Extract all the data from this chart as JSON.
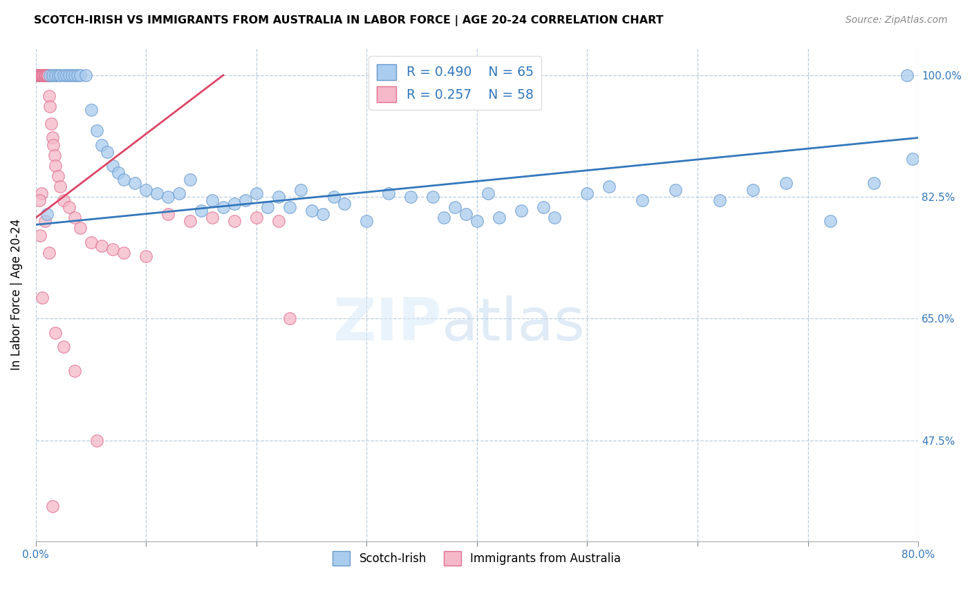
{
  "title": "SCOTCH-IRISH VS IMMIGRANTS FROM AUSTRALIA IN LABOR FORCE | AGE 20-24 CORRELATION CHART",
  "source": "Source: ZipAtlas.com",
  "ylabel": "In Labor Force | Age 20-24",
  "xlim": [
    0.0,
    80.0
  ],
  "ylim": [
    33.0,
    104.0
  ],
  "xtick_positions": [
    0.0,
    10.0,
    20.0,
    30.0,
    40.0,
    50.0,
    60.0,
    70.0,
    80.0
  ],
  "xticklabels": [
    "0.0%",
    "",
    "",
    "",
    "",
    "",
    "",
    "",
    "80.0%"
  ],
  "ytick_values": [
    47.5,
    65.0,
    82.5,
    100.0
  ],
  "ytick_labels": [
    "47.5%",
    "65.0%",
    "82.5%",
    "100.0%"
  ],
  "legend_blue_label": "Scotch-Irish",
  "legend_pink_label": "Immigrants from Australia",
  "R_blue": 0.49,
  "N_blue": 65,
  "R_pink": 0.257,
  "N_pink": 58,
  "blue_color": "#aaccee",
  "pink_color": "#f5b8c8",
  "blue_edge_color": "#6699cc",
  "pink_edge_color": "#e07090",
  "blue_line_color": "#3377bb",
  "pink_line_color": "#dd4466",
  "watermark_zip": "ZIP",
  "watermark_atlas": "atlas",
  "blue_scatter_x": [
    1.0,
    1.3,
    1.5,
    1.8,
    2.0,
    2.2,
    2.5,
    2.8,
    3.0,
    3.3,
    3.5,
    3.8,
    4.0,
    4.5,
    5.0,
    5.5,
    6.0,
    6.5,
    7.0,
    7.5,
    8.0,
    9.0,
    10.0,
    11.0,
    12.0,
    13.0,
    14.0,
    15.0,
    16.0,
    17.0,
    18.0,
    19.0,
    20.0,
    21.0,
    22.0,
    23.0,
    24.0,
    25.0,
    26.0,
    27.0,
    28.0,
    30.0,
    32.0,
    34.0,
    36.0,
    37.0,
    38.0,
    39.0,
    40.0,
    41.0,
    42.0,
    44.0,
    46.0,
    47.0,
    50.0,
    52.0,
    55.0,
    58.0,
    62.0,
    65.0,
    68.0,
    72.0,
    76.0,
    79.0,
    79.5
  ],
  "blue_scatter_y": [
    80.0,
    100.0,
    100.0,
    100.0,
    100.0,
    100.0,
    100.0,
    100.0,
    100.0,
    100.0,
    100.0,
    100.0,
    100.0,
    100.0,
    95.0,
    92.0,
    90.0,
    89.0,
    87.0,
    86.0,
    85.0,
    84.5,
    83.5,
    83.0,
    82.5,
    83.0,
    85.0,
    80.5,
    82.0,
    81.0,
    81.5,
    82.0,
    83.0,
    81.0,
    82.5,
    81.0,
    83.5,
    80.5,
    80.0,
    82.5,
    81.5,
    79.0,
    83.0,
    82.5,
    82.5,
    79.5,
    81.0,
    80.0,
    79.0,
    83.0,
    79.5,
    80.5,
    81.0,
    79.5,
    83.0,
    84.0,
    82.0,
    83.5,
    82.0,
    83.5,
    84.5,
    79.0,
    84.5,
    100.0,
    88.0
  ],
  "pink_scatter_x": [
    0.1,
    0.2,
    0.2,
    0.3,
    0.3,
    0.4,
    0.4,
    0.5,
    0.5,
    0.6,
    0.6,
    0.6,
    0.7,
    0.7,
    0.8,
    0.8,
    0.9,
    0.9,
    1.0,
    1.0,
    1.1,
    1.1,
    1.2,
    1.3,
    1.4,
    1.5,
    1.6,
    1.7,
    1.8,
    2.0,
    2.2,
    2.5,
    3.0,
    3.5,
    4.0,
    5.0,
    6.0,
    7.0,
    8.0,
    10.0,
    12.0,
    14.0,
    16.0,
    18.0,
    20.0,
    22.0,
    23.0,
    0.5,
    0.8,
    1.2,
    1.8,
    2.5,
    3.5,
    5.5,
    0.3,
    0.4,
    0.6,
    1.5
  ],
  "pink_scatter_y": [
    100.0,
    100.0,
    100.0,
    100.0,
    100.0,
    100.0,
    100.0,
    100.0,
    100.0,
    100.0,
    100.0,
    100.0,
    100.0,
    100.0,
    100.0,
    100.0,
    100.0,
    100.0,
    100.0,
    100.0,
    100.0,
    100.0,
    97.0,
    95.5,
    93.0,
    91.0,
    90.0,
    88.5,
    87.0,
    85.5,
    84.0,
    82.0,
    81.0,
    79.5,
    78.0,
    76.0,
    75.5,
    75.0,
    74.5,
    74.0,
    80.0,
    79.0,
    79.5,
    79.0,
    79.5,
    79.0,
    65.0,
    83.0,
    79.0,
    74.5,
    63.0,
    61.0,
    57.5,
    47.5,
    82.0,
    77.0,
    68.0,
    38.0
  ],
  "blue_trendline_x": [
    0.0,
    80.0
  ],
  "blue_trendline_y": [
    78.5,
    91.0
  ],
  "pink_trendline_x": [
    0.0,
    17.0
  ],
  "pink_trendline_y": [
    79.5,
    100.0
  ]
}
